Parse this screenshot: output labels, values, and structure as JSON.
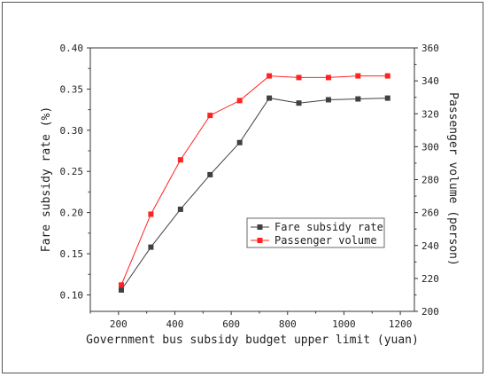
{
  "chart_data": {
    "type": "line",
    "title": "",
    "xlabel": "Government bus subsidy budget upper limit (yuan)",
    "ylabel_left": "Fare subsidy rate (%)",
    "ylabel_right": "Passenger volume (person)",
    "xlim": [
      100,
      1250
    ],
    "ylim_left": [
      0.08,
      0.4
    ],
    "ylim_right": [
      200,
      360
    ],
    "x_ticks": [
      200,
      400,
      600,
      800,
      1000,
      1200
    ],
    "y_left_ticks": [
      0.1,
      0.15,
      0.2,
      0.25,
      0.3,
      0.35,
      0.4
    ],
    "y_right_ticks": [
      200,
      220,
      240,
      260,
      280,
      300,
      320,
      340,
      360
    ],
    "grid": false,
    "legend_position": "center-right",
    "x": [
      210,
      315,
      420,
      525,
      630,
      735,
      840,
      945,
      1050,
      1155
    ],
    "series": [
      {
        "name": "Fare subsidy rate",
        "axis": "left",
        "color": "#404040",
        "marker": "square",
        "values": [
          0.106,
          0.158,
          0.204,
          0.246,
          0.285,
          0.339,
          0.333,
          0.337,
          0.338,
          0.339
        ]
      },
      {
        "name": "Passenger volume",
        "axis": "right",
        "color": "#ff2222",
        "marker": "square",
        "values": [
          216,
          259,
          292,
          319,
          328,
          343,
          342,
          342,
          343,
          343
        ]
      }
    ]
  }
}
